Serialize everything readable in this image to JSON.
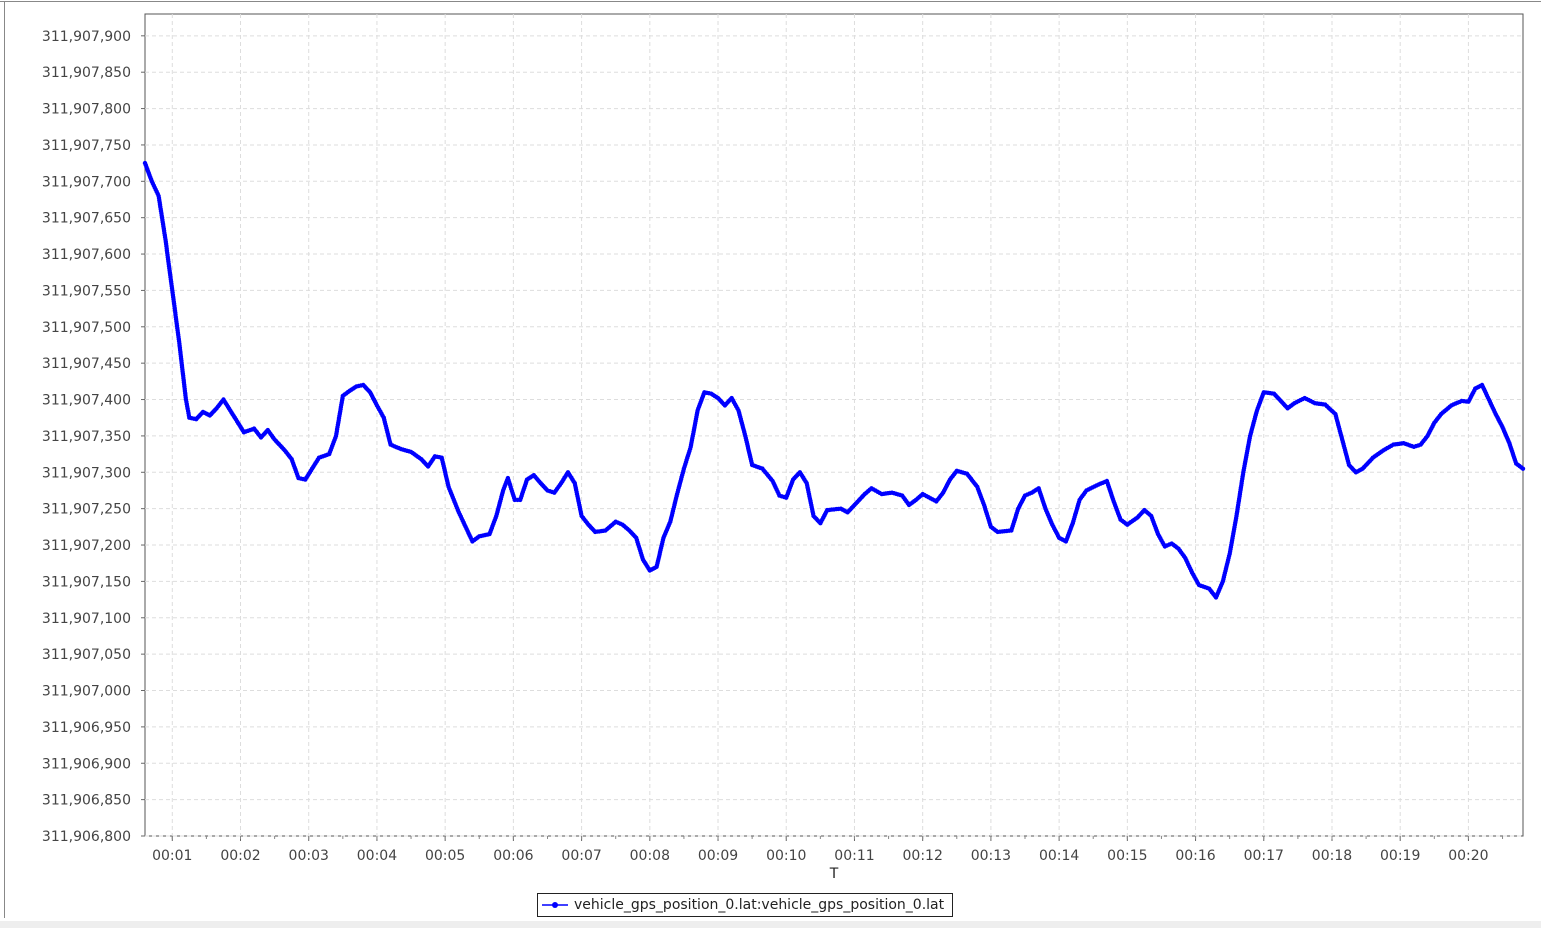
{
  "chart_data": {
    "type": "line",
    "title": "",
    "xlabel": "T",
    "ylabel": "",
    "x_unit": "mm:ss",
    "xlim": [
      "00:00.6",
      "00:20.8"
    ],
    "ylim": [
      311906800,
      311907930
    ],
    "x_ticks": [
      "00:01",
      "00:02",
      "00:03",
      "00:04",
      "00:05",
      "00:06",
      "00:07",
      "00:08",
      "00:09",
      "00:10",
      "00:11",
      "00:12",
      "00:13",
      "00:14",
      "00:15",
      "00:16",
      "00:17",
      "00:18",
      "00:19",
      "00:20"
    ],
    "y_ticks": [
      "311,906,800",
      "311,906,850",
      "311,906,900",
      "311,906,950",
      "311,907,000",
      "311,907,050",
      "311,907,100",
      "311,907,150",
      "311,907,200",
      "311,907,250",
      "311,907,300",
      "311,907,350",
      "311,907,400",
      "311,907,450",
      "311,907,500",
      "311,907,550",
      "311,907,600",
      "311,907,650",
      "311,907,700",
      "311,907,750",
      "311,907,800",
      "311,907,850",
      "311,907,900"
    ],
    "grid": true,
    "legend": "bottom-center",
    "series": [
      {
        "name": "vehicle_gps_position_0.lat:vehicle_gps_position_0.lat",
        "color": "#0000ff",
        "marker": "dot",
        "points": [
          [
            "00:00.60",
            311907725
          ],
          [
            "00:00.70",
            311907700
          ],
          [
            "00:00.80",
            311907680
          ],
          [
            "00:00.90",
            311907620
          ],
          [
            "00:01.00",
            311907550
          ],
          [
            "00:01.10",
            311907480
          ],
          [
            "00:01.20",
            311907400
          ],
          [
            "00:01.25",
            311907375
          ],
          [
            "00:01.35",
            311907373
          ],
          [
            "00:01.45",
            311907383
          ],
          [
            "00:01.55",
            311907378
          ],
          [
            "00:01.65",
            311907388
          ],
          [
            "00:01.75",
            311907400
          ],
          [
            "00:01.85",
            311907385
          ],
          [
            "00:01.95",
            311907370
          ],
          [
            "00:02.05",
            311907355
          ],
          [
            "00:02.20",
            311907360
          ],
          [
            "00:02.30",
            311907348
          ],
          [
            "00:02.40",
            311907358
          ],
          [
            "00:02.50",
            311907345
          ],
          [
            "00:02.65",
            311907330
          ],
          [
            "00:02.75",
            311907318
          ],
          [
            "00:02.85",
            311907292
          ],
          [
            "00:02.95",
            311907290
          ],
          [
            "00:03.05",
            311907305
          ],
          [
            "00:03.15",
            311907320
          ],
          [
            "00:03.30",
            311907325
          ],
          [
            "00:03.40",
            311907350
          ],
          [
            "00:03.50",
            311907405
          ],
          [
            "00:03.60",
            311907412
          ],
          [
            "00:03.70",
            311907418
          ],
          [
            "00:03.80",
            311907420
          ],
          [
            "00:03.90",
            311907410
          ],
          [
            "00:04.00",
            311907392
          ],
          [
            "00:04.10",
            311907375
          ],
          [
            "00:04.20",
            311907338
          ],
          [
            "00:04.35",
            311907332
          ],
          [
            "00:04.50",
            311907328
          ],
          [
            "00:04.65",
            311907318
          ],
          [
            "00:04.75",
            311907308
          ],
          [
            "00:04.85",
            311907322
          ],
          [
            "00:04.95",
            311907320
          ],
          [
            "00:05.05",
            311907280
          ],
          [
            "00:05.20",
            311907245
          ],
          [
            "00:05.30",
            311907225
          ],
          [
            "00:05.40",
            311907205
          ],
          [
            "00:05.50",
            311907212
          ],
          [
            "00:05.65",
            311907215
          ],
          [
            "00:05.75",
            311907240
          ],
          [
            "00:05.85",
            311907275
          ],
          [
            "00:05.92",
            311907292
          ],
          [
            "00:06.02",
            311907262
          ],
          [
            "00:06.10",
            311907262
          ],
          [
            "00:06.20",
            311907290
          ],
          [
            "00:06.30",
            311907296
          ],
          [
            "00:06.40",
            311907285
          ],
          [
            "00:06.50",
            311907275
          ],
          [
            "00:06.60",
            311907272
          ],
          [
            "00:06.70",
            311907285
          ],
          [
            "00:06.80",
            311907300
          ],
          [
            "00:06.90",
            311907285
          ],
          [
            "00:07.00",
            311907240
          ],
          [
            "00:07.10",
            311907228
          ],
          [
            "00:07.20",
            311907218
          ],
          [
            "00:07.35",
            311907220
          ],
          [
            "00:07.50",
            311907232
          ],
          [
            "00:07.60",
            311907228
          ],
          [
            "00:07.70",
            311907220
          ],
          [
            "00:07.80",
            311907210
          ],
          [
            "00:07.90",
            311907180
          ],
          [
            "00:08.00",
            311907165
          ],
          [
            "00:08.10",
            311907170
          ],
          [
            "00:08.20",
            311907210
          ],
          [
            "00:08.30",
            311907232
          ],
          [
            "00:08.40",
            311907270
          ],
          [
            "00:08.50",
            311907305
          ],
          [
            "00:08.60",
            311907335
          ],
          [
            "00:08.70",
            311907385
          ],
          [
            "00:08.80",
            311907410
          ],
          [
            "00:08.90",
            311907408
          ],
          [
            "00:09.00",
            311907402
          ],
          [
            "00:09.10",
            311907392
          ],
          [
            "00:09.20",
            311907402
          ],
          [
            "00:09.30",
            311907385
          ],
          [
            "00:09.40",
            311907350
          ],
          [
            "00:09.50",
            311907310
          ],
          [
            "00:09.65",
            311907305
          ],
          [
            "00:09.80",
            311907288
          ],
          [
            "00:09.90",
            311907268
          ],
          [
            "00:10.00",
            311907265
          ],
          [
            "00:10.10",
            311907290
          ],
          [
            "00:10.20",
            311907300
          ],
          [
            "00:10.30",
            311907285
          ],
          [
            "00:10.40",
            311907240
          ],
          [
            "00:10.50",
            311907230
          ],
          [
            "00:10.60",
            311907248
          ],
          [
            "00:10.80",
            311907250
          ],
          [
            "00:10.90",
            311907245
          ],
          [
            "00:11.00",
            311907255
          ],
          [
            "00:11.15",
            311907270
          ],
          [
            "00:11.25",
            311907278
          ],
          [
            "00:11.40",
            311907270
          ],
          [
            "00:11.55",
            311907272
          ],
          [
            "00:11.70",
            311907268
          ],
          [
            "00:11.80",
            311907255
          ],
          [
            "00:11.90",
            311907262
          ],
          [
            "00:12.00",
            311907270
          ],
          [
            "00:12.20",
            311907260
          ],
          [
            "00:12.30",
            311907272
          ],
          [
            "00:12.40",
            311907290
          ],
          [
            "00:12.50",
            311907302
          ],
          [
            "00:12.65",
            311907298
          ],
          [
            "00:12.80",
            311907280
          ],
          [
            "00:12.90",
            311907255
          ],
          [
            "00:13.00",
            311907225
          ],
          [
            "00:13.10",
            311907218
          ],
          [
            "00:13.30",
            311907220
          ],
          [
            "00:13.40",
            311907250
          ],
          [
            "00:13.50",
            311907268
          ],
          [
            "00:13.60",
            311907272
          ],
          [
            "00:13.70",
            311907278
          ],
          [
            "00:13.80",
            311907250
          ],
          [
            "00:13.90",
            311907228
          ],
          [
            "00:14.00",
            311907210
          ],
          [
            "00:14.10",
            311907205
          ],
          [
            "00:14.20",
            311907230
          ],
          [
            "00:14.30",
            311907262
          ],
          [
            "00:14.40",
            311907275
          ],
          [
            "00:14.55",
            311907282
          ],
          [
            "00:14.70",
            311907288
          ],
          [
            "00:14.80",
            311907260
          ],
          [
            "00:14.90",
            311907235
          ],
          [
            "00:15.00",
            311907228
          ],
          [
            "00:15.15",
            311907238
          ],
          [
            "00:15.25",
            311907248
          ],
          [
            "00:15.35",
            311907240
          ],
          [
            "00:15.45",
            311907215
          ],
          [
            "00:15.55",
            311907198
          ],
          [
            "00:15.65",
            311907202
          ],
          [
            "00:15.75",
            311907195
          ],
          [
            "00:15.85",
            311907182
          ],
          [
            "00:15.95",
            311907162
          ],
          [
            "00:16.05",
            311907145
          ],
          [
            "00:16.20",
            311907140
          ],
          [
            "00:16.30",
            311907128
          ],
          [
            "00:16.40",
            311907150
          ],
          [
            "00:16.50",
            311907188
          ],
          [
            "00:16.60",
            311907240
          ],
          [
            "00:16.70",
            311907300
          ],
          [
            "00:16.80",
            311907350
          ],
          [
            "00:16.90",
            311907385
          ],
          [
            "00:17.00",
            311907410
          ],
          [
            "00:17.15",
            311907408
          ],
          [
            "00:17.25",
            311907398
          ],
          [
            "00:17.35",
            311907388
          ],
          [
            "00:17.45",
            311907395
          ],
          [
            "00:17.60",
            311907402
          ],
          [
            "00:17.75",
            311907395
          ],
          [
            "00:17.90",
            311907393
          ],
          [
            "00:18.05",
            311907380
          ],
          [
            "00:18.15",
            311907345
          ],
          [
            "00:18.25",
            311907310
          ],
          [
            "00:18.35",
            311907300
          ],
          [
            "00:18.45",
            311907305
          ],
          [
            "00:18.60",
            311907320
          ],
          [
            "00:18.75",
            311907330
          ],
          [
            "00:18.90",
            311907338
          ],
          [
            "00:19.05",
            311907340
          ],
          [
            "00:19.20",
            311907335
          ],
          [
            "00:19.30",
            311907338
          ],
          [
            "00:19.40",
            311907350
          ],
          [
            "00:19.50",
            311907368
          ],
          [
            "00:19.60",
            311907380
          ],
          [
            "00:19.75",
            311907392
          ],
          [
            "00:19.90",
            311907398
          ],
          [
            "00:20.00",
            311907397
          ],
          [
            "00:20.10",
            311907415
          ],
          [
            "00:20.20",
            311907420
          ],
          [
            "00:20.30",
            311907400
          ],
          [
            "00:20.40",
            311907380
          ],
          [
            "00:20.50",
            311907362
          ],
          [
            "00:20.60",
            311907340
          ],
          [
            "00:20.70",
            311907312
          ],
          [
            "00:20.80",
            311907305
          ]
        ]
      }
    ]
  }
}
